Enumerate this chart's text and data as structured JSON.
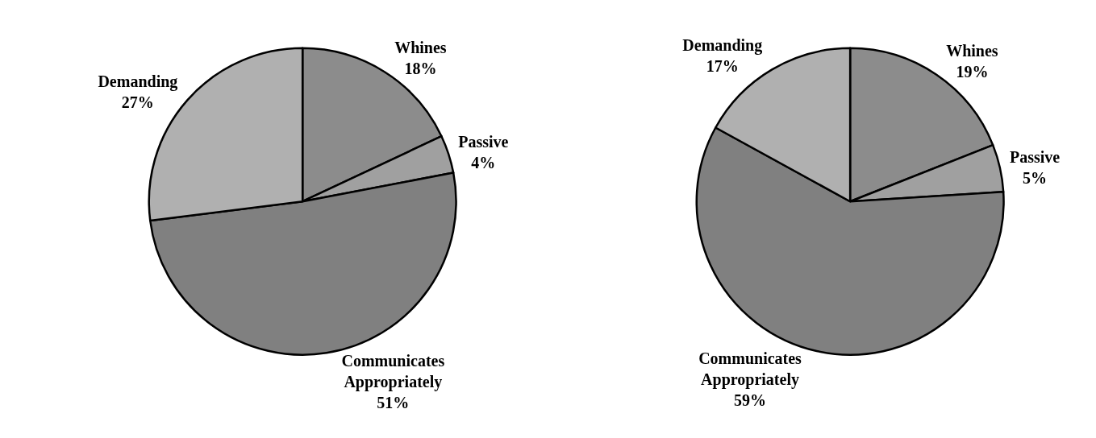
{
  "chart_data": [
    {
      "type": "pie",
      "categories": [
        "Whines",
        "Passive",
        "Communicates Appropriately",
        "Demanding"
      ],
      "values": [
        18,
        4,
        51,
        27
      ],
      "value_labels": [
        "18%",
        "4%",
        "51%",
        "27%"
      ],
      "colors": [
        "#8c8c8c",
        "#a0a0a0",
        "#808080",
        "#b0b0b0"
      ]
    },
    {
      "type": "pie",
      "categories": [
        "Whines",
        "Passive",
        "Communicates Appropriately",
        "Demanding"
      ],
      "values": [
        19,
        5,
        59,
        17
      ],
      "value_labels": [
        "19%",
        "5%",
        "59%",
        "17%"
      ],
      "colors": [
        "#8c8c8c",
        "#a0a0a0",
        "#808080",
        "#b0b0b0"
      ]
    }
  ]
}
